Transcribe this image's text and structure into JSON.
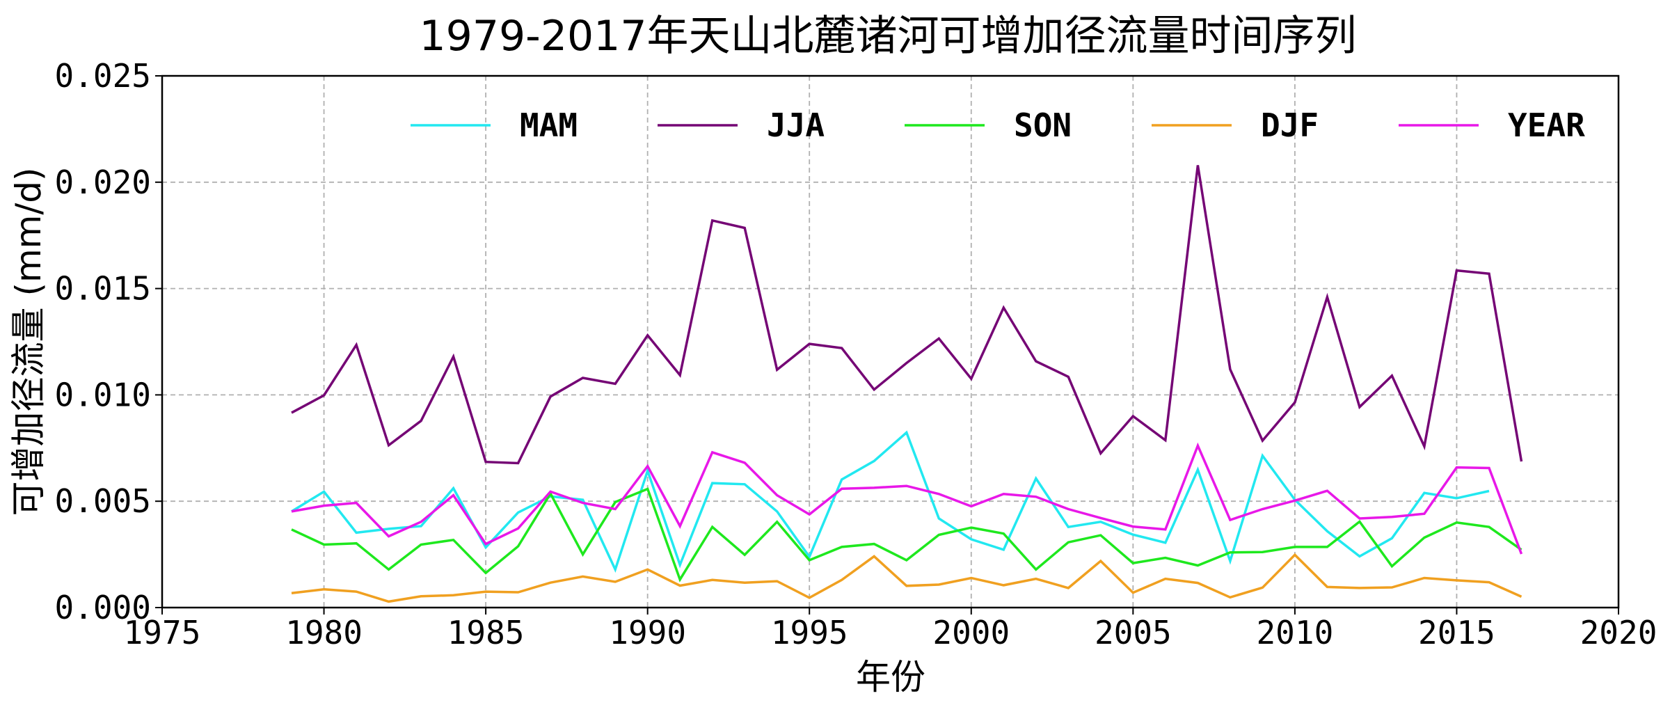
{
  "chart_data": {
    "type": "line",
    "title": "1979-2017年天山北麓诸河可增加径流量时间序列",
    "xlabel": "年份",
    "ylabel": "可增加径流量 (mm/d)",
    "xlim": [
      1975,
      2020
    ],
    "ylim": [
      0,
      0.025
    ],
    "xticks": [
      "1975",
      "1980",
      "1985",
      "1990",
      "1995",
      "2000",
      "2005",
      "2010",
      "2015",
      "2020"
    ],
    "yticks": [
      "0.000",
      "0.005",
      "0.010",
      "0.015",
      "0.020",
      "0.025"
    ],
    "grid": true,
    "legend_position": "top",
    "x": [
      1979,
      1980,
      1981,
      1982,
      1983,
      1984,
      1985,
      1986,
      1987,
      1988,
      1989,
      1990,
      1991,
      1992,
      1993,
      1994,
      1995,
      1996,
      1997,
      1998,
      1999,
      2000,
      2001,
      2002,
      2003,
      2004,
      2005,
      2006,
      2007,
      2008,
      2009,
      2010,
      2011,
      2012,
      2013,
      2014,
      2015,
      2016,
      2017
    ],
    "series": [
      {
        "name": "MAM",
        "color": "#22e8f0",
        "values": [
          0.00452,
          0.00545,
          0.00352,
          0.0037,
          0.00383,
          0.00561,
          0.00283,
          0.00447,
          0.00523,
          0.00507,
          0.00179,
          0.00643,
          0.00201,
          0.00585,
          0.0058,
          0.00452,
          0.00239,
          0.00602,
          0.00689,
          0.00823,
          0.00419,
          0.00321,
          0.00272,
          0.00607,
          0.00379,
          0.00403,
          0.00343,
          0.00305,
          0.00648,
          0.00219,
          0.00714,
          0.00507,
          0.00359,
          0.00241,
          0.00326,
          0.00539,
          0.00514,
          0.00548,
          null
        ]
      },
      {
        "name": "JJA",
        "color": "#750675",
        "values": [
          0.00916,
          0.00998,
          0.01235,
          0.00763,
          0.00878,
          0.0118,
          0.00685,
          0.00679,
          0.00992,
          0.0108,
          0.01052,
          0.0128,
          0.01093,
          0.0182,
          0.01785,
          0.01118,
          0.0124,
          0.0122,
          0.01025,
          0.0115,
          0.01265,
          0.01076,
          0.0141,
          0.01158,
          0.01085,
          0.00725,
          0.009,
          0.00787,
          0.0208,
          0.0112,
          0.00785,
          0.00965,
          0.0146,
          0.00943,
          0.0109,
          0.00758,
          0.01585,
          0.0157,
          0.00687
        ]
      },
      {
        "name": "SON",
        "color": "#1ee81e",
        "values": [
          0.00367,
          0.00296,
          0.00302,
          0.00179,
          0.00296,
          0.00318,
          0.00163,
          0.00288,
          0.00536,
          0.0025,
          0.00496,
          0.00558,
          0.00132,
          0.00379,
          0.00248,
          0.00403,
          0.00223,
          0.00285,
          0.00299,
          0.00223,
          0.00342,
          0.00376,
          0.00348,
          0.00179,
          0.00307,
          0.0034,
          0.00209,
          0.00234,
          0.00198,
          0.00259,
          0.00261,
          0.00285,
          0.00285,
          0.00404,
          0.00194,
          0.00329,
          0.004,
          0.00379,
          0.00272
        ]
      },
      {
        "name": "DJF",
        "color": "#f0a020",
        "values": [
          0.00068,
          0.00086,
          0.00075,
          0.00028,
          0.00053,
          0.00058,
          0.00075,
          0.00072,
          0.00117,
          0.00146,
          0.00121,
          0.00179,
          0.00103,
          0.0013,
          0.00117,
          0.00124,
          0.00046,
          0.0013,
          0.00241,
          0.00102,
          0.00108,
          0.00139,
          0.00105,
          0.00135,
          0.00092,
          0.00219,
          0.0007,
          0.00135,
          0.00116,
          0.00048,
          0.00094,
          0.00248,
          0.00097,
          0.00092,
          0.00095,
          0.00139,
          0.00128,
          0.00119,
          0.00051
        ]
      },
      {
        "name": "YEAR",
        "color": "#e818e8",
        "values": [
          0.00452,
          0.00479,
          0.00492,
          0.00335,
          0.00403,
          0.00528,
          0.00299,
          0.00372,
          0.00545,
          0.00492,
          0.00463,
          0.00665,
          0.00383,
          0.0073,
          0.00681,
          0.00528,
          0.00438,
          0.00559,
          0.00563,
          0.00572,
          0.00534,
          0.00476,
          0.00534,
          0.00521,
          0.00463,
          0.00421,
          0.00381,
          0.00367,
          0.00761,
          0.00412,
          0.00463,
          0.00503,
          0.00549,
          0.00419,
          0.00426,
          0.00441,
          0.00659,
          0.00656,
          0.00252
        ]
      }
    ]
  }
}
